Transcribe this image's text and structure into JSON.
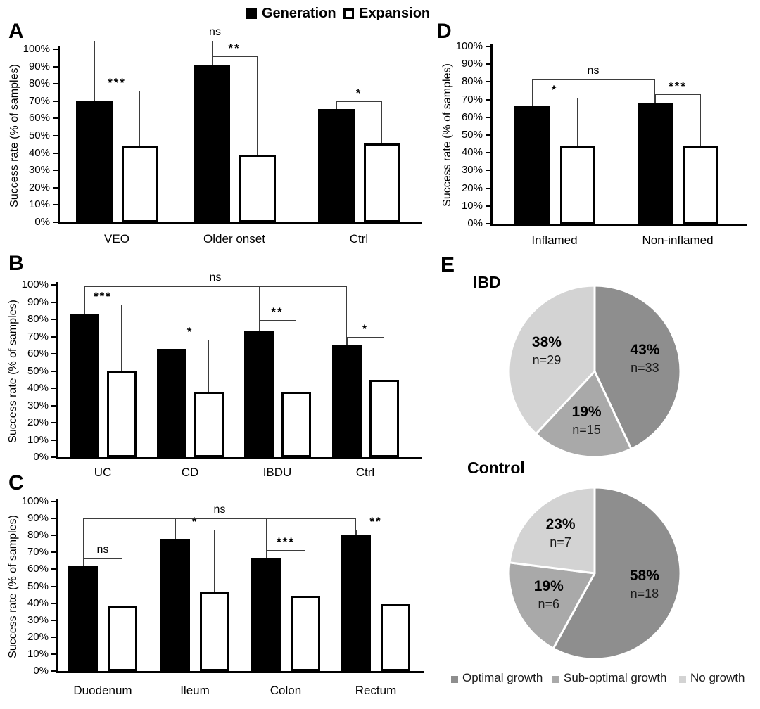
{
  "legend": {
    "generation": "Generation",
    "expansion": "Expansion"
  },
  "colors": {
    "generation_fill": "#000000",
    "expansion_fill": "#ffffff",
    "bar_outline": "#000000",
    "bracket_line": "#3d3d3d",
    "optimal_growth": "#8e8e8e",
    "sub_optimal_growth": "#a9a9a9",
    "no_growth": "#d3d3d3"
  },
  "chart_data": [
    {
      "id": "A",
      "type": "bar",
      "panel_label": "A",
      "ylabel": "Success rate (% of samples)",
      "ylim": [
        0,
        100
      ],
      "ytick_step": 10,
      "ytick_suffix": "%",
      "series": [
        "Generation",
        "Expansion"
      ],
      "categories": [
        "VEO",
        "Older onset",
        "Ctrl"
      ],
      "values": {
        "generation": [
          70.5,
          91,
          65.5
        ],
        "expansion": [
          44,
          39,
          45.5
        ]
      },
      "pair_significance": [
        {
          "category": "VEO",
          "label": "***",
          "bracket_y_pct": 76
        },
        {
          "category": "Older onset",
          "label": "**",
          "bracket_y_pct": 96
        },
        {
          "category": "Ctrl",
          "label": "*",
          "bracket_y_pct": 70
        }
      ],
      "overall_significance": {
        "label": "ns",
        "bracket_y_pct": 105
      }
    },
    {
      "id": "B",
      "type": "bar",
      "panel_label": "B",
      "ylabel": "Success rate (% of samples)",
      "ylim": [
        0,
        100
      ],
      "ytick_step": 10,
      "ytick_suffix": "%",
      "series": [
        "Generation",
        "Expansion"
      ],
      "categories": [
        "UC",
        "CD",
        "IBDU",
        "Ctrl"
      ],
      "values": {
        "generation": [
          83,
          63,
          73.5,
          65.5
        ],
        "expansion": [
          50,
          38,
          38,
          45
        ]
      },
      "pair_significance": [
        {
          "category": "UC",
          "label": "***",
          "bracket_y_pct": 88.5
        },
        {
          "category": "CD",
          "label": "*",
          "bracket_y_pct": 68
        },
        {
          "category": "IBDU",
          "label": "**",
          "bracket_y_pct": 79.5
        },
        {
          "category": "Ctrl",
          "label": "*",
          "bracket_y_pct": 70
        }
      ],
      "overall_significance": {
        "label": "ns",
        "bracket_y_pct": 99
      }
    },
    {
      "id": "C",
      "type": "bar",
      "panel_label": "C",
      "ylabel": "Success rate (% of samples)",
      "ylim": [
        0,
        100
      ],
      "ytick_step": 10,
      "ytick_suffix": "%",
      "series": [
        "Generation",
        "Expansion"
      ],
      "categories": [
        "Duodenum",
        "Ileum",
        "Colon",
        "Rectum"
      ],
      "values": {
        "generation": [
          62,
          78,
          66.5,
          80
        ],
        "expansion": [
          38.5,
          46.5,
          44.5,
          39.5
        ]
      },
      "pair_significance": [
        {
          "category": "Duodenum",
          "label": "ns",
          "bracket_y_pct": 66.5
        },
        {
          "category": "Ileum",
          "label": "*",
          "bracket_y_pct": 83.5
        },
        {
          "category": "Colon",
          "label": "***",
          "bracket_y_pct": 71.5
        },
        {
          "category": "Rectum",
          "label": "**",
          "bracket_y_pct": 83.5
        }
      ],
      "overall_significance": {
        "label": "ns",
        "bracket_y_pct": 90
      }
    },
    {
      "id": "D",
      "type": "bar",
      "panel_label": "D",
      "ylabel": "Success rate (% of samples)",
      "ylim": [
        0,
        100
      ],
      "ytick_step": 10,
      "ytick_suffix": "%",
      "series": [
        "Generation",
        "Expansion"
      ],
      "categories": [
        "Inflamed",
        "Non-inflamed"
      ],
      "values": {
        "generation": [
          66.5,
          68
        ],
        "expansion": [
          44,
          43.5
        ]
      },
      "pair_significance": [
        {
          "category": "Inflamed",
          "label": "*",
          "bracket_y_pct": 71
        },
        {
          "category": "Non-inflamed",
          "label": "***",
          "bracket_y_pct": 73
        }
      ],
      "overall_significance": {
        "label": "ns",
        "bracket_y_pct": 81.5
      }
    },
    {
      "id": "E1",
      "type": "pie",
      "panel_label": "E",
      "title": "IBD",
      "start_angle_deg": 0,
      "direction": "clockwise",
      "slices": [
        {
          "label": "Optimal growth",
          "pct": 43,
          "n_text": "n=33"
        },
        {
          "label": "Sub-optimal growth",
          "pct": 19,
          "n_text": "n=15"
        },
        {
          "label": "No growth",
          "pct": 38,
          "n_text": "n=29"
        }
      ]
    },
    {
      "id": "E2",
      "type": "pie",
      "title": "Control",
      "start_angle_deg": 0,
      "direction": "clockwise",
      "slices": [
        {
          "label": "Optimal growth",
          "pct": 58,
          "n_text": "n=18"
        },
        {
          "label": "Sub-optimal growth",
          "pct": 19,
          "n_text": "n=6"
        },
        {
          "label": "No growth",
          "pct": 23,
          "n_text": "n=7"
        }
      ]
    }
  ],
  "pie_legend": [
    {
      "label": "Optimal growth",
      "color": "#8e8e8e"
    },
    {
      "label": "Sub-optimal growth",
      "color": "#a9a9a9"
    },
    {
      "label": "No growth",
      "color": "#d3d3d3"
    }
  ]
}
